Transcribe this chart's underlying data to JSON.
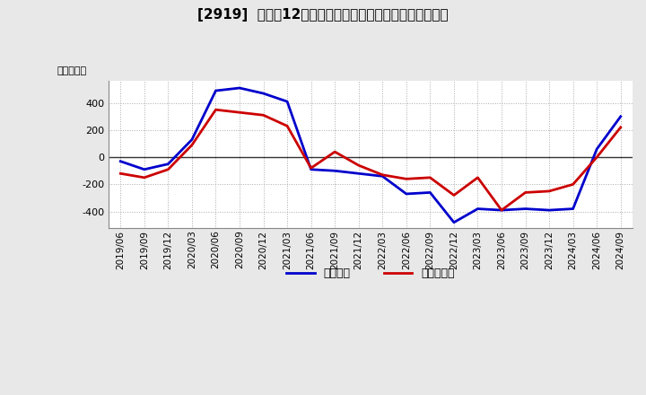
{
  "title": "[2919]  利益の12か月移動合計の対前年同期増減額の推移",
  "ylabel": "（百万円）",
  "legend_labels": [
    "経常利益",
    "当期純利益"
  ],
  "line_colors": [
    "#0000cc",
    "#cc0000"
  ],
  "background_color": "#e8e8e8",
  "plot_background": "#ffffff",
  "dates": [
    "2019/06",
    "2019/09",
    "2019/12",
    "2020/03",
    "2020/06",
    "2020/09",
    "2020/12",
    "2021/03",
    "2021/06",
    "2021/09",
    "2021/12",
    "2022/03",
    "2022/06",
    "2022/09",
    "2022/12",
    "2023/03",
    "2023/06",
    "2023/09",
    "2023/12",
    "2024/03",
    "2024/06",
    "2024/09"
  ],
  "keijo_rieki": [
    -30,
    -90,
    -50,
    130,
    490,
    510,
    470,
    410,
    -90,
    -100,
    -120,
    -140,
    -270,
    -260,
    -480,
    -380,
    -390,
    -380,
    -390,
    -380,
    60,
    300
  ],
  "touki_jurieki": [
    -120,
    -150,
    -90,
    90,
    350,
    330,
    310,
    230,
    -80,
    40,
    -60,
    -130,
    -160,
    -150,
    -280,
    -150,
    -390,
    -260,
    -250,
    -200,
    0,
    220
  ],
  "ylim": [
    -520,
    560
  ],
  "yticks": [
    -400,
    -200,
    0,
    200,
    400
  ],
  "grid_color": "#aaaaaa",
  "grid_style": ":"
}
